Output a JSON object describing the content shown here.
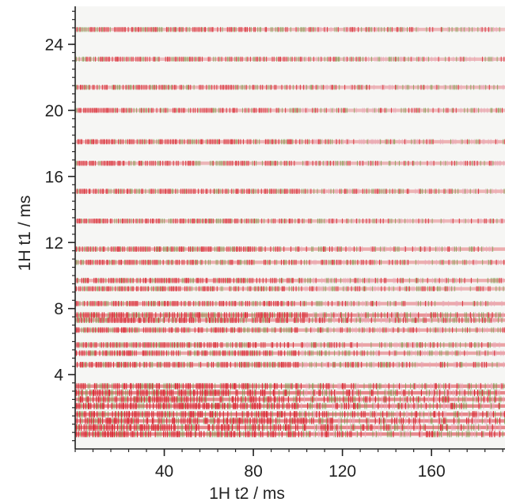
{
  "chart_data": {
    "type": "heatmap",
    "title": "",
    "xlabel": "1H t2 / ms",
    "ylabel": "1H  t1 / ms",
    "xlim": [
      0,
      193
    ],
    "ylim": [
      -0.5,
      26.3
    ],
    "x_ticks": [
      {
        "value": 40,
        "label": "40"
      },
      {
        "value": 80,
        "label": "80"
      },
      {
        "value": 120,
        "label": "120"
      },
      {
        "value": 160,
        "label": "160"
      }
    ],
    "y_ticks": [
      {
        "value": 4,
        "label": "4"
      },
      {
        "value": 8,
        "label": "8"
      },
      {
        "value": 12,
        "label": "12"
      },
      {
        "value": 16,
        "label": "16"
      },
      {
        "value": 20,
        "label": "20"
      },
      {
        "value": 24,
        "label": "24"
      }
    ],
    "x_minor_step": 8,
    "y_minor_step": 0.5,
    "grid": false,
    "background_color": "#f6f6f4",
    "colors": {
      "positive": "#d8202a",
      "negative": "#6a9a3a",
      "faded": "#e9a9b9"
    },
    "rows": [
      {
        "t1": 0.4,
        "intensity": 0.92
      },
      {
        "t1": 0.8,
        "intensity": 0.95
      },
      {
        "t1": 1.2,
        "intensity": 0.93
      },
      {
        "t1": 1.6,
        "intensity": 0.96
      },
      {
        "t1": 2.1,
        "intensity": 0.95
      },
      {
        "t1": 2.5,
        "intensity": 0.94
      },
      {
        "t1": 2.9,
        "intensity": 0.96
      },
      {
        "t1": 3.3,
        "intensity": 0.85
      },
      {
        "t1": 4.6,
        "intensity": 0.72
      },
      {
        "t1": 5.3,
        "intensity": 0.68
      },
      {
        "t1": 5.8,
        "intensity": 0.7
      },
      {
        "t1": 6.7,
        "intensity": 0.66
      },
      {
        "t1": 7.3,
        "intensity": 0.72
      },
      {
        "t1": 7.6,
        "intensity": 0.82
      },
      {
        "t1": 8.3,
        "intensity": 0.64
      },
      {
        "t1": 9.2,
        "intensity": 0.55
      },
      {
        "t1": 9.7,
        "intensity": 0.62
      },
      {
        "t1": 10.8,
        "intensity": 0.6
      },
      {
        "t1": 11.6,
        "intensity": 0.63
      },
      {
        "t1": 13.3,
        "intensity": 0.52
      },
      {
        "t1": 15.1,
        "intensity": 0.56
      },
      {
        "t1": 16.8,
        "intensity": 0.54
      },
      {
        "t1": 18.1,
        "intensity": 0.56
      },
      {
        "t1": 20.0,
        "intensity": 0.5
      },
      {
        "t1": 21.4,
        "intensity": 0.52
      },
      {
        "t1": 23.1,
        "intensity": 0.5
      },
      {
        "t1": 24.9,
        "intensity": 0.52
      }
    ]
  }
}
